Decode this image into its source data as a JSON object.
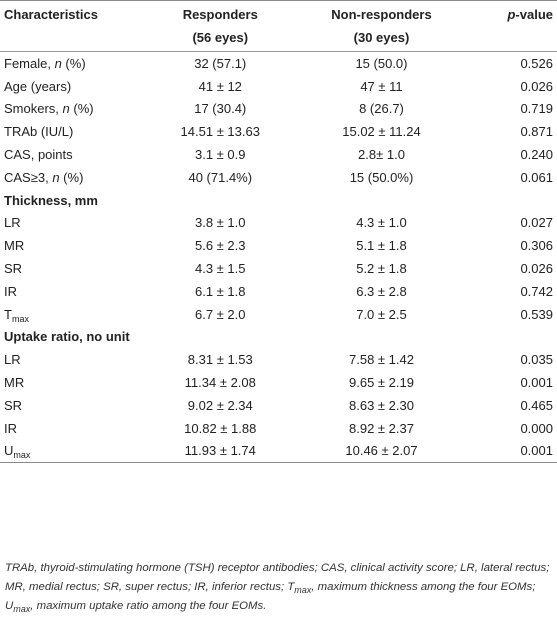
{
  "header": {
    "characteristics": "Characteristics",
    "responders": "Responders",
    "responders_n": "(56 eyes)",
    "nonresponders": "Non-responders",
    "nonresponders_n": "(30 eyes)",
    "pvalue_p": "p",
    "pvalue_rest": "-value"
  },
  "rows": [
    {
      "label": "Female, ",
      "label_italic": "n",
      "label_tail": " (%)",
      "resp": "32 (57.1)",
      "nonresp": "15 (50.0)",
      "p": "0.526"
    },
    {
      "label": "Age (years)",
      "resp": "41 ± 12",
      "nonresp": "47 ± 11",
      "p": "0.026"
    },
    {
      "label": "Smokers, ",
      "label_italic": "n",
      "label_tail": " (%)",
      "resp": "17 (30.4)",
      "nonresp": "8 (26.7)",
      "p": "0.719"
    },
    {
      "label": "TRAb (IU/L)",
      "resp": "14.51 ± 13.63",
      "nonresp": "15.02 ± 11.24",
      "p": "0.871"
    },
    {
      "label": "CAS, points",
      "resp": "3.1 ± 0.9",
      "nonresp": "2.8± 1.0",
      "p": "0.240"
    },
    {
      "label": "CAS≥3, ",
      "label_italic": "n",
      "label_tail": " (%)",
      "resp": "40 (71.4%)",
      "nonresp": "15 (50.0%)",
      "p": "0.061"
    }
  ],
  "section_thickness": "Thickness, mm",
  "thickness": [
    {
      "label": "LR",
      "resp": "3.8 ± 1.0",
      "nonresp": "4.3 ± 1.0",
      "p": "0.027"
    },
    {
      "label": "MR",
      "resp": "5.6 ± 2.3",
      "nonresp": "5.1 ± 1.8",
      "p": "0.306"
    },
    {
      "label": "SR",
      "resp": "4.3 ± 1.5",
      "nonresp": "5.2 ± 1.8",
      "p": "0.026"
    },
    {
      "label": "IR",
      "resp": "6.1 ± 1.8",
      "nonresp": "6.3 ± 2.8",
      "p": "0.742"
    },
    {
      "label": "T",
      "sub": "max",
      "resp": "6.7 ± 2.0",
      "nonresp": "7.0 ± 2.5",
      "p": "0.539"
    }
  ],
  "section_uptake": "Uptake ratio, no unit",
  "uptake": [
    {
      "label": "LR",
      "resp": "8.31 ± 1.53",
      "nonresp": "7.58 ± 1.42",
      "p": "0.035"
    },
    {
      "label": "MR",
      "resp": "11.34 ± 2.08",
      "nonresp": "9.65 ± 2.19",
      "p": "0.001"
    },
    {
      "label": "SR",
      "resp": "9.02 ± 2.34",
      "nonresp": "8.63 ± 2.30",
      "p": "0.465"
    },
    {
      "label": "IR",
      "resp": "10.82 ± 1.88",
      "nonresp": "8.92 ± 2.37",
      "p": "0.000"
    },
    {
      "label": "U",
      "sub": "max",
      "resp": "11.93 ± 1.74",
      "nonresp": "10.46 ± 2.07",
      "p": "0.001"
    }
  ],
  "footnote": {
    "part1": "TRAb, thyroid-stimulating hormone (TSH) receptor antibodies; CAS, clinical activity score; LR, lateral rectus; MR, medial rectus; SR, super rectus; IR, inferior rectus; T",
    "tmax_sub": "max",
    "part2": ", maximum thickness among the four EOMs; U",
    "umax_sub": "max",
    "part3": ", maximum uptake ratio among the four EOMs."
  }
}
